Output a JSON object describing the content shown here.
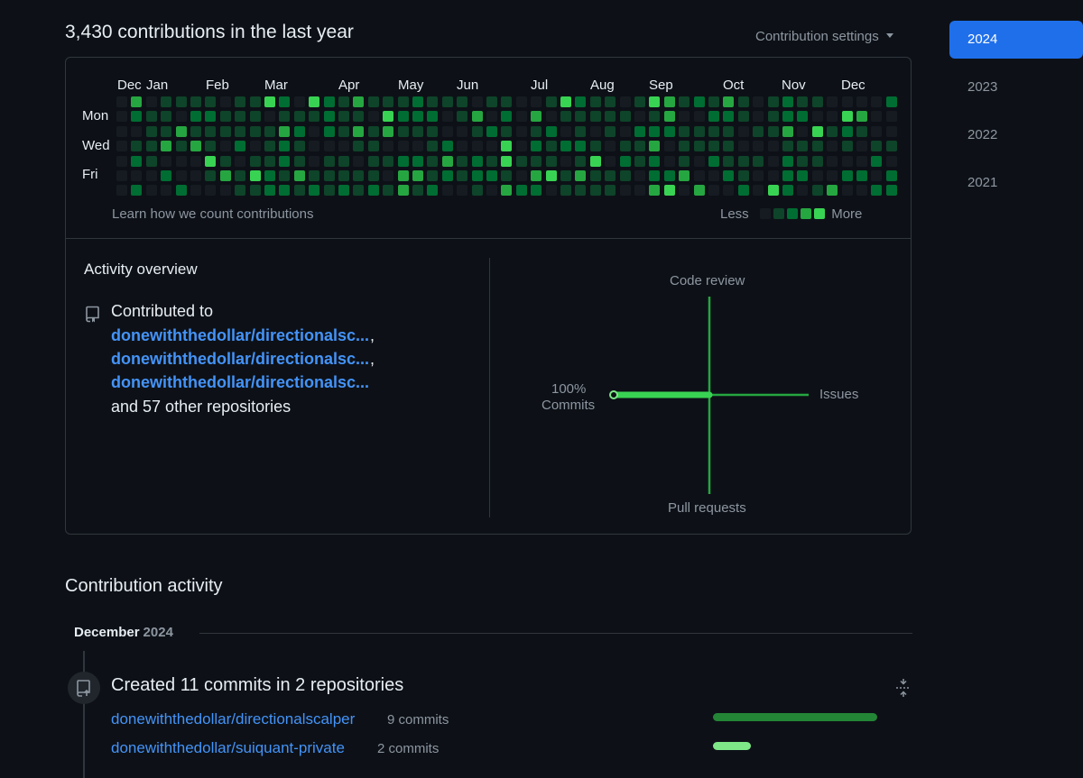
{
  "summary": {
    "title": "3,430 contributions in the last year"
  },
  "settings": {
    "label": "Contribution settings"
  },
  "years": [
    "2024",
    "2023",
    "2022",
    "2021"
  ],
  "active_year_index": 0,
  "calendar": {
    "months": [
      "Dec",
      "Jan",
      "Feb",
      "Mar",
      "Apr",
      "May",
      "Jun",
      "Jul",
      "Aug",
      "Sep",
      "Oct",
      "Nov",
      "Dec"
    ],
    "day_labels": [
      "Mon",
      "Wed",
      "Fri"
    ],
    "learn_link": "Learn how we count contributions",
    "legend": {
      "less": "Less",
      "more": "More"
    },
    "level_colors": [
      "#161b22",
      "#0e4429",
      "#006d32",
      "#26a641",
      "#39d353"
    ]
  },
  "overview": {
    "title": "Activity overview",
    "contributed_label": "Contributed to",
    "repos": [
      "donewiththedollar/directionalsc...",
      "donewiththedollar/directionalsc...",
      "donewiththedollar/directionalsc..."
    ],
    "others": "and 57 other repositories",
    "axes": {
      "top": "Code review",
      "right": "Issues",
      "bottom": "Pull requests",
      "left_pct": "100%",
      "left_label": "Commits"
    },
    "percentages": {
      "commits": 100,
      "issues": 0,
      "code_review": 0,
      "pull_requests": 0
    }
  },
  "activity": {
    "title": "Contribution activity",
    "month": "December",
    "year": "2024",
    "entry": {
      "heading": "Created 11 commits in 2 repositories",
      "repos": [
        {
          "name": "donewiththedollar/directionalscalper",
          "count": "9 commits",
          "commits": 9,
          "color": "#238636"
        },
        {
          "name": "donewiththedollar/suiquant-private",
          "count": "2 commits",
          "commits": 2,
          "color": "#7ee787"
        }
      ]
    }
  }
}
